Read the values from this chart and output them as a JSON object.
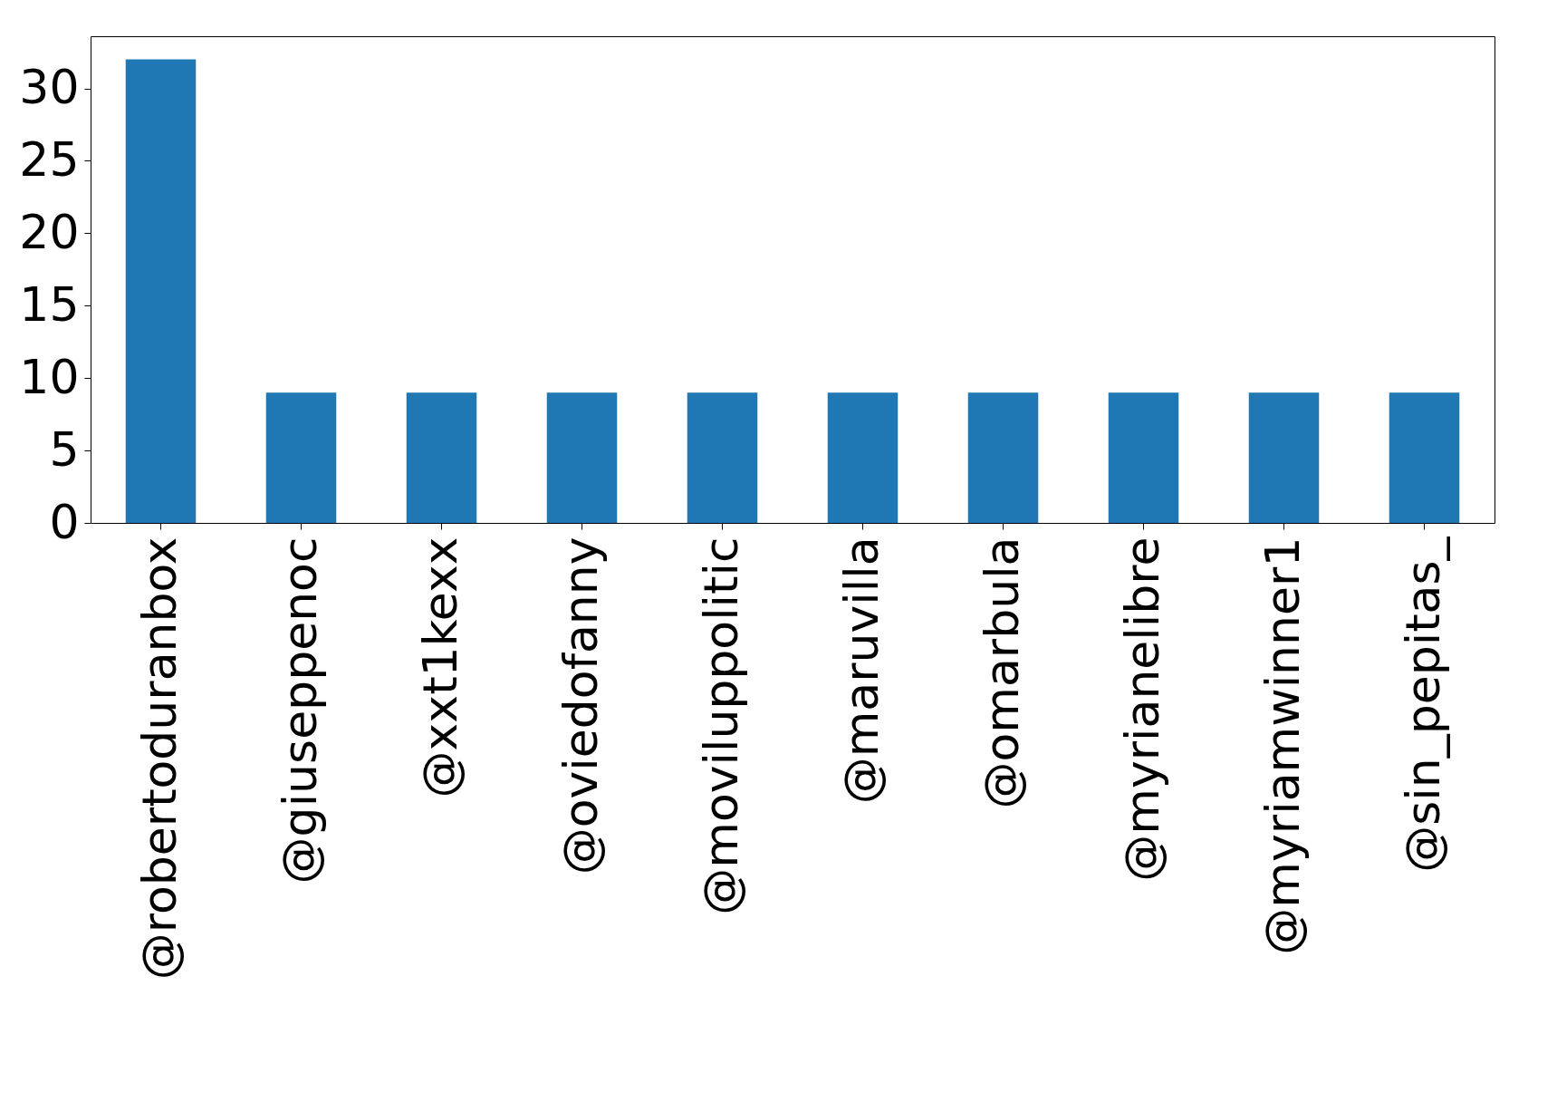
{
  "chart_data": {
    "type": "bar",
    "categories": [
      "@robertoduranbox",
      "@giuseppenoc",
      "@xxt1kexx",
      "@oviedofanny",
      "@moviluppolitic",
      "@maruvilla",
      "@omarbula",
      "@myrianelibre",
      "@myriamwinner1",
      "@sin_pepitas_"
    ],
    "values": [
      32,
      9,
      9,
      9,
      9,
      9,
      9,
      9,
      9,
      9
    ],
    "color": "#1f77b4",
    "ylim": [
      0,
      33.6
    ],
    "yticks": [
      0,
      5,
      10,
      15,
      20,
      25,
      30
    ],
    "grid": false
  }
}
